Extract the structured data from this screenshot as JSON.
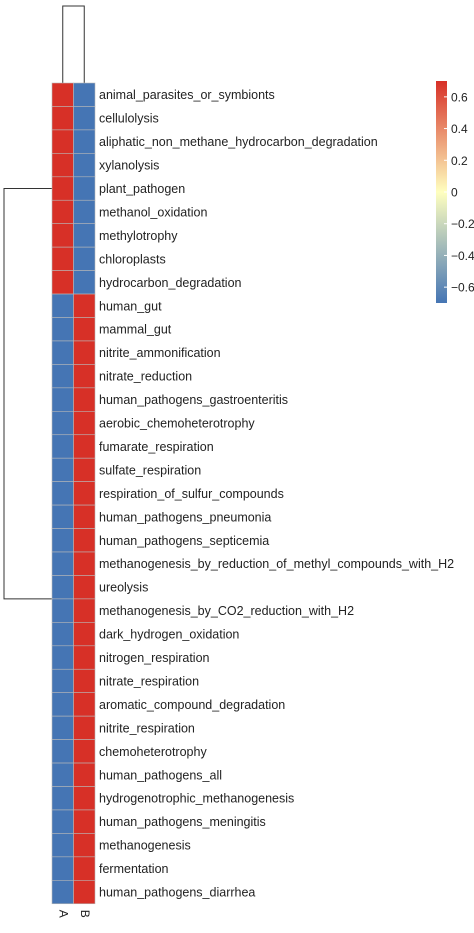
{
  "chart_data": {
    "type": "heatmap",
    "title": "",
    "columns": [
      "A",
      "B"
    ],
    "rows": [
      "animal_parasites_or_symbionts",
      "cellulolysis",
      "aliphatic_non_methane_hydrocarbon_degradation",
      "xylanolysis",
      "plant_pathogen",
      "methanol_oxidation",
      "methylotrophy",
      "chloroplasts",
      "hydrocarbon_degradation",
      "human_gut",
      "mammal_gut",
      "nitrite_ammonification",
      "nitrate_reduction",
      "human_pathogens_gastroenteritis",
      "aerobic_chemoheterotrophy",
      "fumarate_respiration",
      "sulfate_respiration",
      "respiration_of_sulfur_compounds",
      "human_pathogens_pneumonia",
      "human_pathogens_septicemia",
      "methanogenesis_by_reduction_of_methyl_compounds_with_H2",
      "ureolysis",
      "methanogenesis_by_CO2_reduction_with_H2",
      "dark_hydrogen_oxidation",
      "nitrogen_respiration",
      "nitrate_respiration",
      "aromatic_compound_degradation",
      "nitrite_respiration",
      "chemoheterotrophy",
      "human_pathogens_all",
      "hydrogenotrophic_methanogenesis",
      "human_pathogens_meningitis",
      "methanogenesis",
      "fermentation",
      "human_pathogens_diarrhea"
    ],
    "values": [
      [
        0.7,
        -0.7
      ],
      [
        0.7,
        -0.7
      ],
      [
        0.7,
        -0.7
      ],
      [
        0.7,
        -0.7
      ],
      [
        0.7,
        -0.7
      ],
      [
        0.7,
        -0.7
      ],
      [
        0.7,
        -0.7
      ],
      [
        0.7,
        -0.7
      ],
      [
        0.7,
        -0.7
      ],
      [
        -0.7,
        0.7
      ],
      [
        -0.7,
        0.7
      ],
      [
        -0.7,
        0.7
      ],
      [
        -0.7,
        0.7
      ],
      [
        -0.7,
        0.7
      ],
      [
        -0.7,
        0.7
      ],
      [
        -0.7,
        0.7
      ],
      [
        -0.7,
        0.7
      ],
      [
        -0.7,
        0.7
      ],
      [
        -0.7,
        0.7
      ],
      [
        -0.7,
        0.7
      ],
      [
        -0.7,
        0.7
      ],
      [
        -0.7,
        0.7
      ],
      [
        -0.7,
        0.7
      ],
      [
        -0.7,
        0.7
      ],
      [
        -0.7,
        0.7
      ],
      [
        -0.7,
        0.7
      ],
      [
        -0.7,
        0.7
      ],
      [
        -0.7,
        0.7
      ],
      [
        -0.7,
        0.7
      ],
      [
        -0.7,
        0.7
      ],
      [
        -0.7,
        0.7
      ],
      [
        -0.7,
        0.7
      ],
      [
        -0.7,
        0.7
      ],
      [
        -0.7,
        0.7
      ],
      [
        -0.7,
        0.7
      ]
    ],
    "colorscale": {
      "min": -0.7,
      "max": 0.7,
      "colors": [
        "#4575b4",
        "#ffffbf",
        "#d73027"
      ],
      "ticks": [
        0.6,
        0.4,
        0.2,
        0,
        -0.2,
        -0.4,
        -0.6
      ],
      "tick_labels": [
        "0.6",
        "0.4",
        "0.2",
        "0",
        "−0.2",
        "−0.4",
        "−0.6"
      ]
    },
    "legend": "top-right",
    "column_dendrogram": true,
    "row_dendrogram": true,
    "row_clusters": [
      {
        "start": 0,
        "end": 8
      },
      {
        "start": 9,
        "end": 34
      }
    ]
  }
}
